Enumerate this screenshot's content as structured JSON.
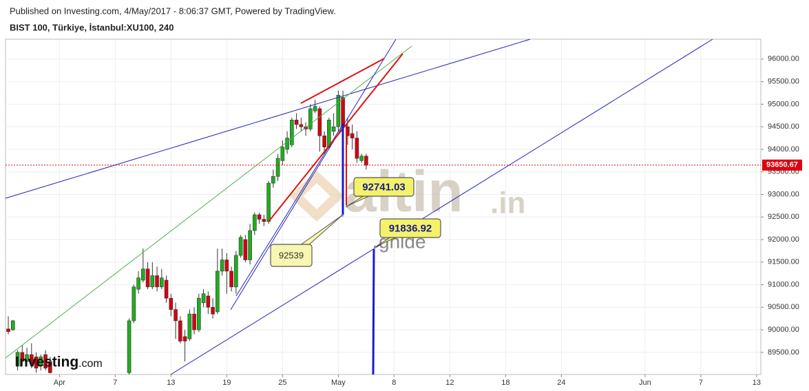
{
  "chart_data": {
    "type": "candlestick",
    "source": "Published on Investing.com, 4/May/2017 - 8:06:37 GMT, Powered by TradingView.",
    "title": "BIST 100, Türkiye, İstanbul:XU100, 240",
    "x": [
      0,
      1,
      2,
      3,
      4,
      5,
      6,
      7,
      8,
      9,
      26,
      27,
      28,
      29,
      30,
      31,
      32,
      33,
      34,
      35,
      36,
      37,
      38,
      39,
      40,
      41,
      42,
      43,
      44,
      45,
      46,
      47,
      48,
      49,
      50,
      51,
      52,
      53,
      54,
      55,
      56,
      57,
      58,
      59,
      60,
      61,
      62,
      63,
      64,
      65,
      66,
      67,
      68,
      69,
      70,
      71,
      72,
      73,
      74,
      75,
      76,
      77
    ],
    "open": [
      90020,
      90000,
      89200,
      89500,
      89300,
      89450,
      89400,
      89200,
      89450,
      89300,
      89050,
      90200,
      90900,
      91100,
      91350,
      90950,
      91200,
      90950,
      91100,
      90700,
      90450,
      90200,
      89850,
      89800,
      90350,
      90000,
      90600,
      90750,
      90500,
      90400,
      91300,
      91550,
      91300,
      90950,
      91650,
      92000,
      91550,
      92200,
      92550,
      92450,
      92400,
      93250,
      93400,
      93750,
      94000,
      94100,
      94650,
      94550,
      94500,
      94450,
      94850,
      94900,
      94300,
      94050,
      94400,
      94500,
      95150,
      94500,
      94350,
      94250,
      93750,
      93850
    ],
    "high": [
      90300,
      90220,
      89550,
      89650,
      89600,
      89700,
      89500,
      89450,
      89550,
      89400,
      90250,
      91000,
      91300,
      91800,
      91500,
      91500,
      91400,
      91350,
      91200,
      90800,
      90600,
      90300,
      90000,
      90450,
      90500,
      90800,
      90900,
      90850,
      90700,
      91800,
      91800,
      91700,
      91400,
      91750,
      92100,
      92100,
      92350,
      92600,
      92600,
      92550,
      93300,
      93550,
      93900,
      94200,
      94400,
      94700,
      94800,
      94700,
      94600,
      95000,
      95100,
      94950,
      94400,
      94700,
      94800,
      95300,
      95300,
      94700,
      94550,
      94400,
      93900,
      93900
    ],
    "low": [
      89900,
      89980,
      89100,
      89200,
      89200,
      89150,
      89050,
      89100,
      89100,
      89030,
      89010,
      90150,
      90800,
      91050,
      90900,
      90900,
      90850,
      90900,
      90600,
      90300,
      89800,
      89700,
      89300,
      89750,
      89900,
      89950,
      90500,
      90350,
      90250,
      90350,
      91200,
      90800,
      90850,
      90800,
      91600,
      91500,
      91450,
      92100,
      92350,
      92300,
      92350,
      93150,
      93300,
      93650,
      93900,
      94050,
      94450,
      94400,
      94300,
      94400,
      94800,
      93950,
      93900,
      94000,
      94300,
      94400,
      94350,
      94100,
      94000,
      93700,
      93700,
      93550
    ],
    "close": [
      89960,
      90200,
      89500,
      89300,
      89450,
      89250,
      89150,
      89400,
      89150,
      89050,
      90200,
      90950,
      91150,
      91350,
      90950,
      91200,
      90950,
      91150,
      90700,
      90450,
      90200,
      89750,
      89750,
      90350,
      90000,
      90700,
      90800,
      90500,
      90350,
      91300,
      91550,
      91300,
      90950,
      91650,
      92050,
      91550,
      92200,
      92550,
      92450,
      92400,
      93250,
      93400,
      93800,
      94050,
      94250,
      94650,
      94550,
      94500,
      94450,
      94900,
      94950,
      94300,
      94050,
      94650,
      94500,
      95200,
      94500,
      94300,
      94250,
      93800,
      93850,
      93650
    ],
    "up_color": "#1fae1f",
    "down_color": "#d4000f",
    "xlim": [
      -0.6,
      161.9
    ],
    "xticks": [
      {
        "value": 11,
        "label": "Apr"
      },
      {
        "value": 23,
        "label": "7"
      },
      {
        "value": 35,
        "label": "13"
      },
      {
        "value": 47,
        "label": "19"
      },
      {
        "value": 59,
        "label": "25"
      },
      {
        "value": 71,
        "label": "May"
      },
      {
        "value": 83,
        "label": "8"
      },
      {
        "value": 95,
        "label": "12"
      },
      {
        "value": 107,
        "label": "18"
      },
      {
        "value": 119,
        "label": "24"
      },
      {
        "value": 137,
        "label": "Jun"
      },
      {
        "value": 149,
        "label": "7"
      },
      {
        "value": 161,
        "label": "13"
      }
    ],
    "ylim": [
      89010,
      96440
    ],
    "yticks": [
      {
        "value": 89500,
        "label": "89500.00"
      },
      {
        "value": 90000,
        "label": "90000.00"
      },
      {
        "value": 90500,
        "label": "90500.00"
      },
      {
        "value": 91000,
        "label": "91000.00"
      },
      {
        "value": 91500,
        "label": "91500.00"
      },
      {
        "value": 92000,
        "label": "92000.00"
      },
      {
        "value": 92500,
        "label": "92500.00"
      },
      {
        "value": 93000,
        "label": "93000.00"
      },
      {
        "value": 93500,
        "label": "93500.00"
      },
      {
        "value": 94000,
        "label": "94000.00"
      },
      {
        "value": 94500,
        "label": "94500.00"
      },
      {
        "value": 95000,
        "label": "95000.00"
      },
      {
        "value": 95500,
        "label": "95500.00"
      },
      {
        "value": 96000,
        "label": "96000.00"
      }
    ],
    "grid": true,
    "last_price": 93650.67,
    "last_price_color": "#e0000f",
    "annotations": [
      92741.03,
      91836.92,
      92539
    ],
    "watermark": [
      "altin",
      ".in",
      "gnlde"
    ],
    "logo": [
      "Investing",
      ".com"
    ]
  }
}
